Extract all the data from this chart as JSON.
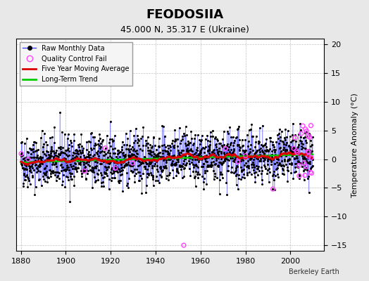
{
  "title": "FEODOSIIA",
  "subtitle": "45.000 N, 35.317 E (Ukraine)",
  "ylabel": "Temperature Anomaly (°C)",
  "credit": "Berkeley Earth",
  "xlim": [
    1878,
    2015
  ],
  "ylim": [
    -16,
    21
  ],
  "yticks": [
    -15,
    -10,
    -5,
    0,
    5,
    10,
    15,
    20
  ],
  "xticks": [
    1880,
    1900,
    1920,
    1940,
    1960,
    1980,
    2000
  ],
  "bg_color": "#e8e8e8",
  "plot_bg_color": "#ffffff",
  "raw_line_color": "#4444ff",
  "raw_marker_color": "#000000",
  "moving_avg_color": "#dd0000",
  "trend_color": "#00cc00",
  "qc_fail_color": "#ff44ff",
  "seed": 42,
  "n_years_raw": 130,
  "start_year": 1880
}
